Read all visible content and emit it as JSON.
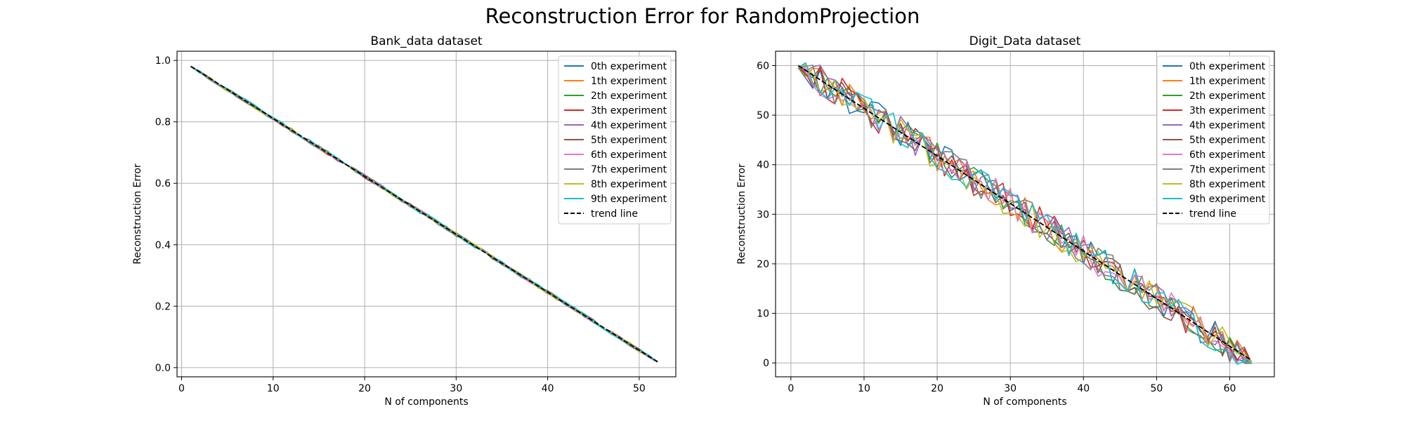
{
  "figure": {
    "suptitle": "Reconstruction Error for RandomProjection"
  },
  "chart_data": [
    {
      "type": "line",
      "title": "Bank_data dataset",
      "xlabel": "N of components",
      "ylabel": "Reconstruction Error",
      "xlim": [
        -0.5,
        54
      ],
      "ylim": [
        -0.03,
        1.03
      ],
      "xticks": [
        0,
        10,
        20,
        30,
        40,
        50
      ],
      "yticks": [
        0.0,
        0.2,
        0.4,
        0.6,
        0.8,
        1.0
      ],
      "tick_format": 1,
      "grid": true,
      "legend_position": "top-right",
      "x_range": [
        1,
        52
      ],
      "trend": {
        "name": "trend line",
        "from": [
          1,
          0.981
        ],
        "to": [
          52,
          0.019
        ],
        "style": "dashed"
      },
      "series": [
        {
          "name": "0th experiment",
          "color": "#1f77b4",
          "noise": 0.006,
          "seed": 11
        },
        {
          "name": "1th experiment",
          "color": "#ff7f0e",
          "noise": 0.006,
          "seed": 12
        },
        {
          "name": "2th experiment",
          "color": "#2ca02c",
          "noise": 0.006,
          "seed": 13
        },
        {
          "name": "3th experiment",
          "color": "#d62728",
          "noise": 0.006,
          "seed": 14
        },
        {
          "name": "4th experiment",
          "color": "#9467bd",
          "noise": 0.006,
          "seed": 15
        },
        {
          "name": "5th experiment",
          "color": "#8c564b",
          "noise": 0.006,
          "seed": 16
        },
        {
          "name": "6th experiment",
          "color": "#e377c2",
          "noise": 0.006,
          "seed": 17
        },
        {
          "name": "7th experiment",
          "color": "#7f7f7f",
          "noise": 0.006,
          "seed": 18
        },
        {
          "name": "8th experiment",
          "color": "#bcbd22",
          "noise": 0.006,
          "seed": 19
        },
        {
          "name": "9th experiment",
          "color": "#17becf",
          "noise": 0.006,
          "seed": 20
        }
      ]
    },
    {
      "type": "line",
      "title": "Digit_Data dataset",
      "xlabel": "N of components",
      "ylabel": "Reconstruction Error",
      "xlim": [
        -2.1,
        66.1
      ],
      "ylim": [
        -2.8,
        62.9
      ],
      "xticks": [
        0,
        10,
        20,
        30,
        40,
        50,
        60
      ],
      "yticks": [
        0,
        10,
        20,
        30,
        40,
        50,
        60
      ],
      "tick_format": 0,
      "grid": true,
      "legend_position": "top-right",
      "x_range": [
        1,
        63
      ],
      "trend": {
        "name": "trend line",
        "from": [
          1,
          60
        ],
        "to": [
          63,
          0.5
        ],
        "style": "dashed"
      },
      "series": [
        {
          "name": "0th experiment",
          "color": "#1f77b4",
          "noise": 3.2,
          "seed": 31
        },
        {
          "name": "1th experiment",
          "color": "#ff7f0e",
          "noise": 3.2,
          "seed": 32
        },
        {
          "name": "2th experiment",
          "color": "#2ca02c",
          "noise": 3.2,
          "seed": 33
        },
        {
          "name": "3th experiment",
          "color": "#d62728",
          "noise": 3.2,
          "seed": 34
        },
        {
          "name": "4th experiment",
          "color": "#9467bd",
          "noise": 3.2,
          "seed": 35
        },
        {
          "name": "5th experiment",
          "color": "#8c564b",
          "noise": 3.2,
          "seed": 36
        },
        {
          "name": "6th experiment",
          "color": "#e377c2",
          "noise": 3.2,
          "seed": 37
        },
        {
          "name": "7th experiment",
          "color": "#7f7f7f",
          "noise": 3.2,
          "seed": 38
        },
        {
          "name": "8th experiment",
          "color": "#bcbd22",
          "noise": 3.2,
          "seed": 39
        },
        {
          "name": "9th experiment",
          "color": "#17becf",
          "noise": 3.2,
          "seed": 40
        }
      ]
    }
  ]
}
